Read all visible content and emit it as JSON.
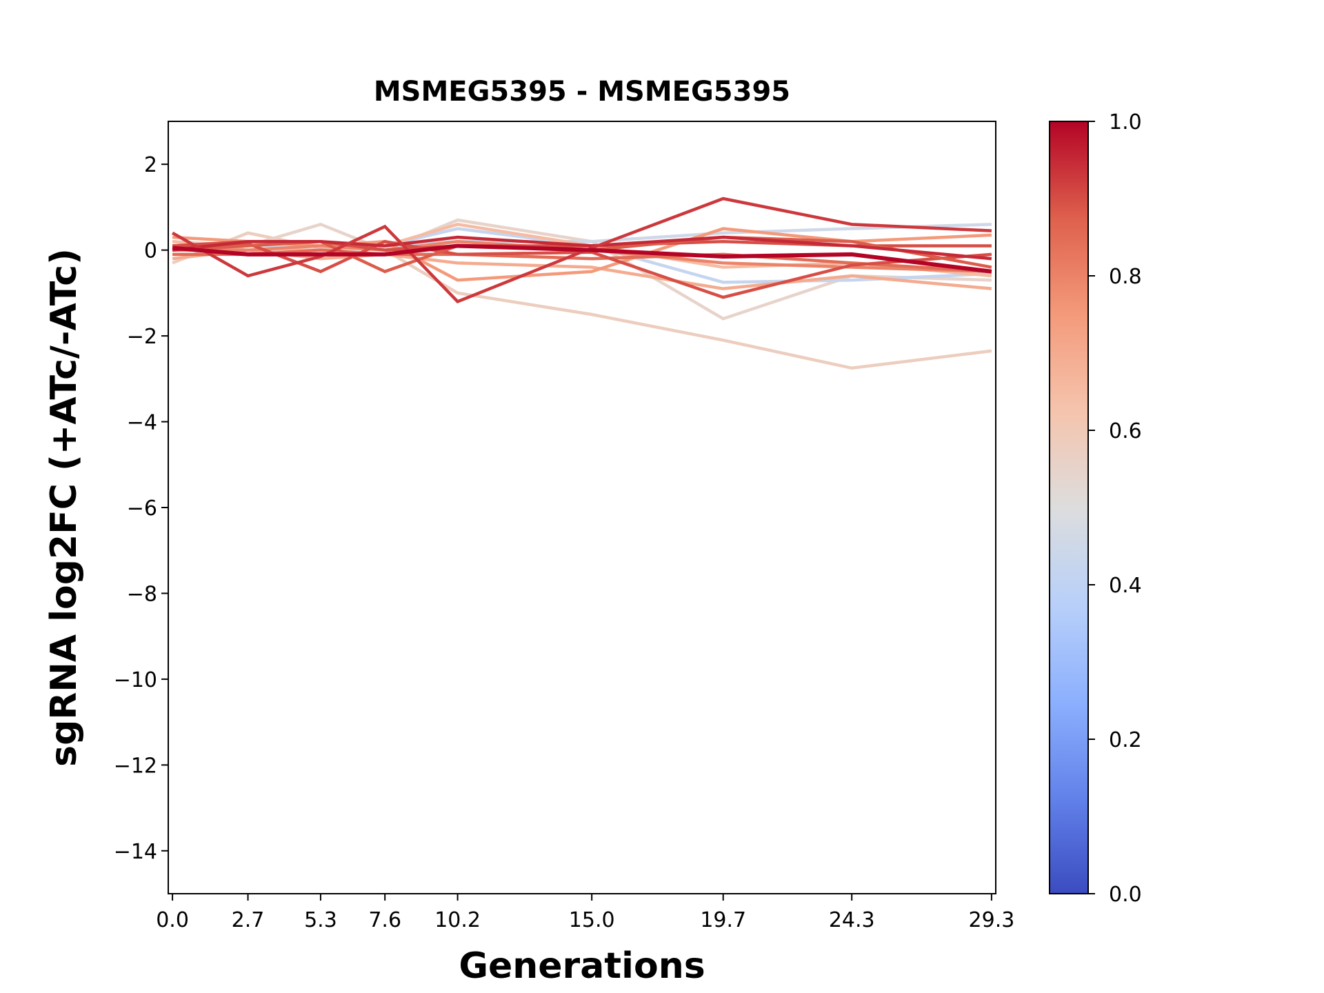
{
  "chart_data": {
    "type": "line",
    "title": "MSMEG5395 - MSMEG5395",
    "xlabel": "Generations",
    "ylabel": "sgRNA log2FC (+ATc/-ATc)",
    "x": [
      0.0,
      2.7,
      5.3,
      7.6,
      10.2,
      15.0,
      19.7,
      24.3,
      29.3
    ],
    "xtick_labels": [
      "0.0",
      "2.7",
      "5.3",
      "7.6",
      "10.2",
      "15.0",
      "19.7",
      "24.3",
      "29.3"
    ],
    "ylim": [
      -15,
      3
    ],
    "yticks": [
      2,
      0,
      -2,
      -4,
      -6,
      -8,
      -10,
      -12,
      -14
    ],
    "ytick_labels": [
      "2",
      "0",
      "−2",
      "−4",
      "−6",
      "−8",
      "−10",
      "−12",
      "−14"
    ],
    "grid": false,
    "colormap": "coolwarm",
    "colorbar": {
      "range": [
        0.0,
        1.0
      ],
      "tick_labels": [
        "0.0",
        "0.2",
        "0.4",
        "0.6",
        "0.8",
        "1.0"
      ]
    },
    "series": [
      {
        "color_value": 0.58,
        "values": [
          -0.3,
          0.4,
          0.05,
          0.0,
          -1.0,
          -1.5,
          -2.1,
          -2.75,
          -2.35
        ]
      },
      {
        "color_value": 0.55,
        "values": [
          0.2,
          0.1,
          0.6,
          0.0,
          0.7,
          0.2,
          -1.6,
          -0.6,
          -0.7
        ]
      },
      {
        "color_value": 0.42,
        "values": [
          0.1,
          0.0,
          0.0,
          0.1,
          0.5,
          0.1,
          -0.75,
          -0.7,
          -0.55
        ]
      },
      {
        "color_value": 0.45,
        "values": [
          0.0,
          0.1,
          0.1,
          0.1,
          0.2,
          0.2,
          0.4,
          0.5,
          0.6
        ]
      },
      {
        "color_value": 0.65,
        "values": [
          0.2,
          0.0,
          0.0,
          0.1,
          0.6,
          0.1,
          -0.4,
          -0.3,
          -0.6
        ]
      },
      {
        "color_value": 0.7,
        "values": [
          -0.2,
          0.0,
          -0.2,
          -0.1,
          -0.3,
          -0.4,
          -0.9,
          -0.6,
          -0.9
        ]
      },
      {
        "color_value": 0.75,
        "values": [
          0.3,
          0.2,
          0.1,
          0.2,
          -0.7,
          -0.5,
          0.5,
          0.2,
          0.35
        ]
      },
      {
        "color_value": 0.8,
        "values": [
          0.0,
          0.0,
          0.1,
          0.0,
          0.2,
          0.0,
          -0.3,
          -0.4,
          -0.5
        ]
      },
      {
        "color_value": 0.85,
        "values": [
          -0.1,
          -0.1,
          0.0,
          -0.1,
          -0.1,
          -0.2,
          -0.1,
          -0.3,
          -0.5
        ]
      },
      {
        "color_value": 0.9,
        "values": [
          0.1,
          0.2,
          0.2,
          0.0,
          0.1,
          0.1,
          0.2,
          0.1,
          0.1
        ]
      },
      {
        "color_value": 0.9,
        "values": [
          0.1,
          0.15,
          -0.5,
          0.2,
          -0.1,
          -0.05,
          -1.1,
          -0.35,
          -0.1
        ]
      },
      {
        "color_value": 0.88,
        "values": [
          0.0,
          0.1,
          0.2,
          -0.5,
          0.1,
          0.0,
          0.3,
          0.2,
          -0.4
        ]
      },
      {
        "color_value": 0.95,
        "values": [
          0.0,
          0.2,
          0.2,
          0.1,
          0.3,
          0.1,
          0.3,
          0.1,
          -0.2
        ]
      },
      {
        "color_value": 0.93,
        "values": [
          0.4,
          -0.6,
          -0.15,
          0.55,
          -1.2,
          0.05,
          1.2,
          0.6,
          0.45
        ]
      },
      {
        "color_value": 1.0,
        "values": [
          0.05,
          -0.1,
          -0.1,
          -0.1,
          0.1,
          0.0,
          -0.15,
          -0.1,
          -0.5
        ]
      }
    ]
  }
}
